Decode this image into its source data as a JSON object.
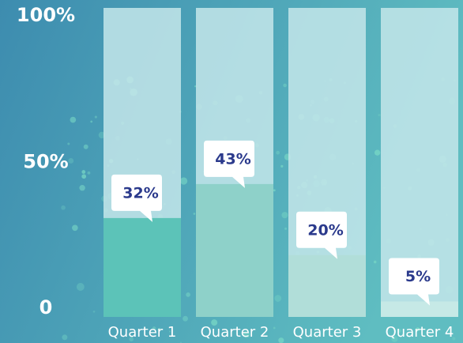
{
  "chart_data": {
    "type": "bar",
    "categories": [
      "Quarter 1",
      "Quarter 2",
      "Quarter 3",
      "Quarter 4"
    ],
    "values": [
      32,
      43,
      20,
      5
    ],
    "value_labels": [
      "32%",
      "43%",
      "20%",
      "5%"
    ],
    "colors": [
      "#5cc3b8",
      "#8ed1c9",
      "#b1ded9",
      "#c6e9e6"
    ],
    "ylim": [
      0,
      100
    ],
    "yticks": [
      {
        "value": 0,
        "label": "0"
      },
      {
        "value": 50,
        "label": "50%"
      },
      {
        "value": 100,
        "label": "100%"
      }
    ]
  }
}
